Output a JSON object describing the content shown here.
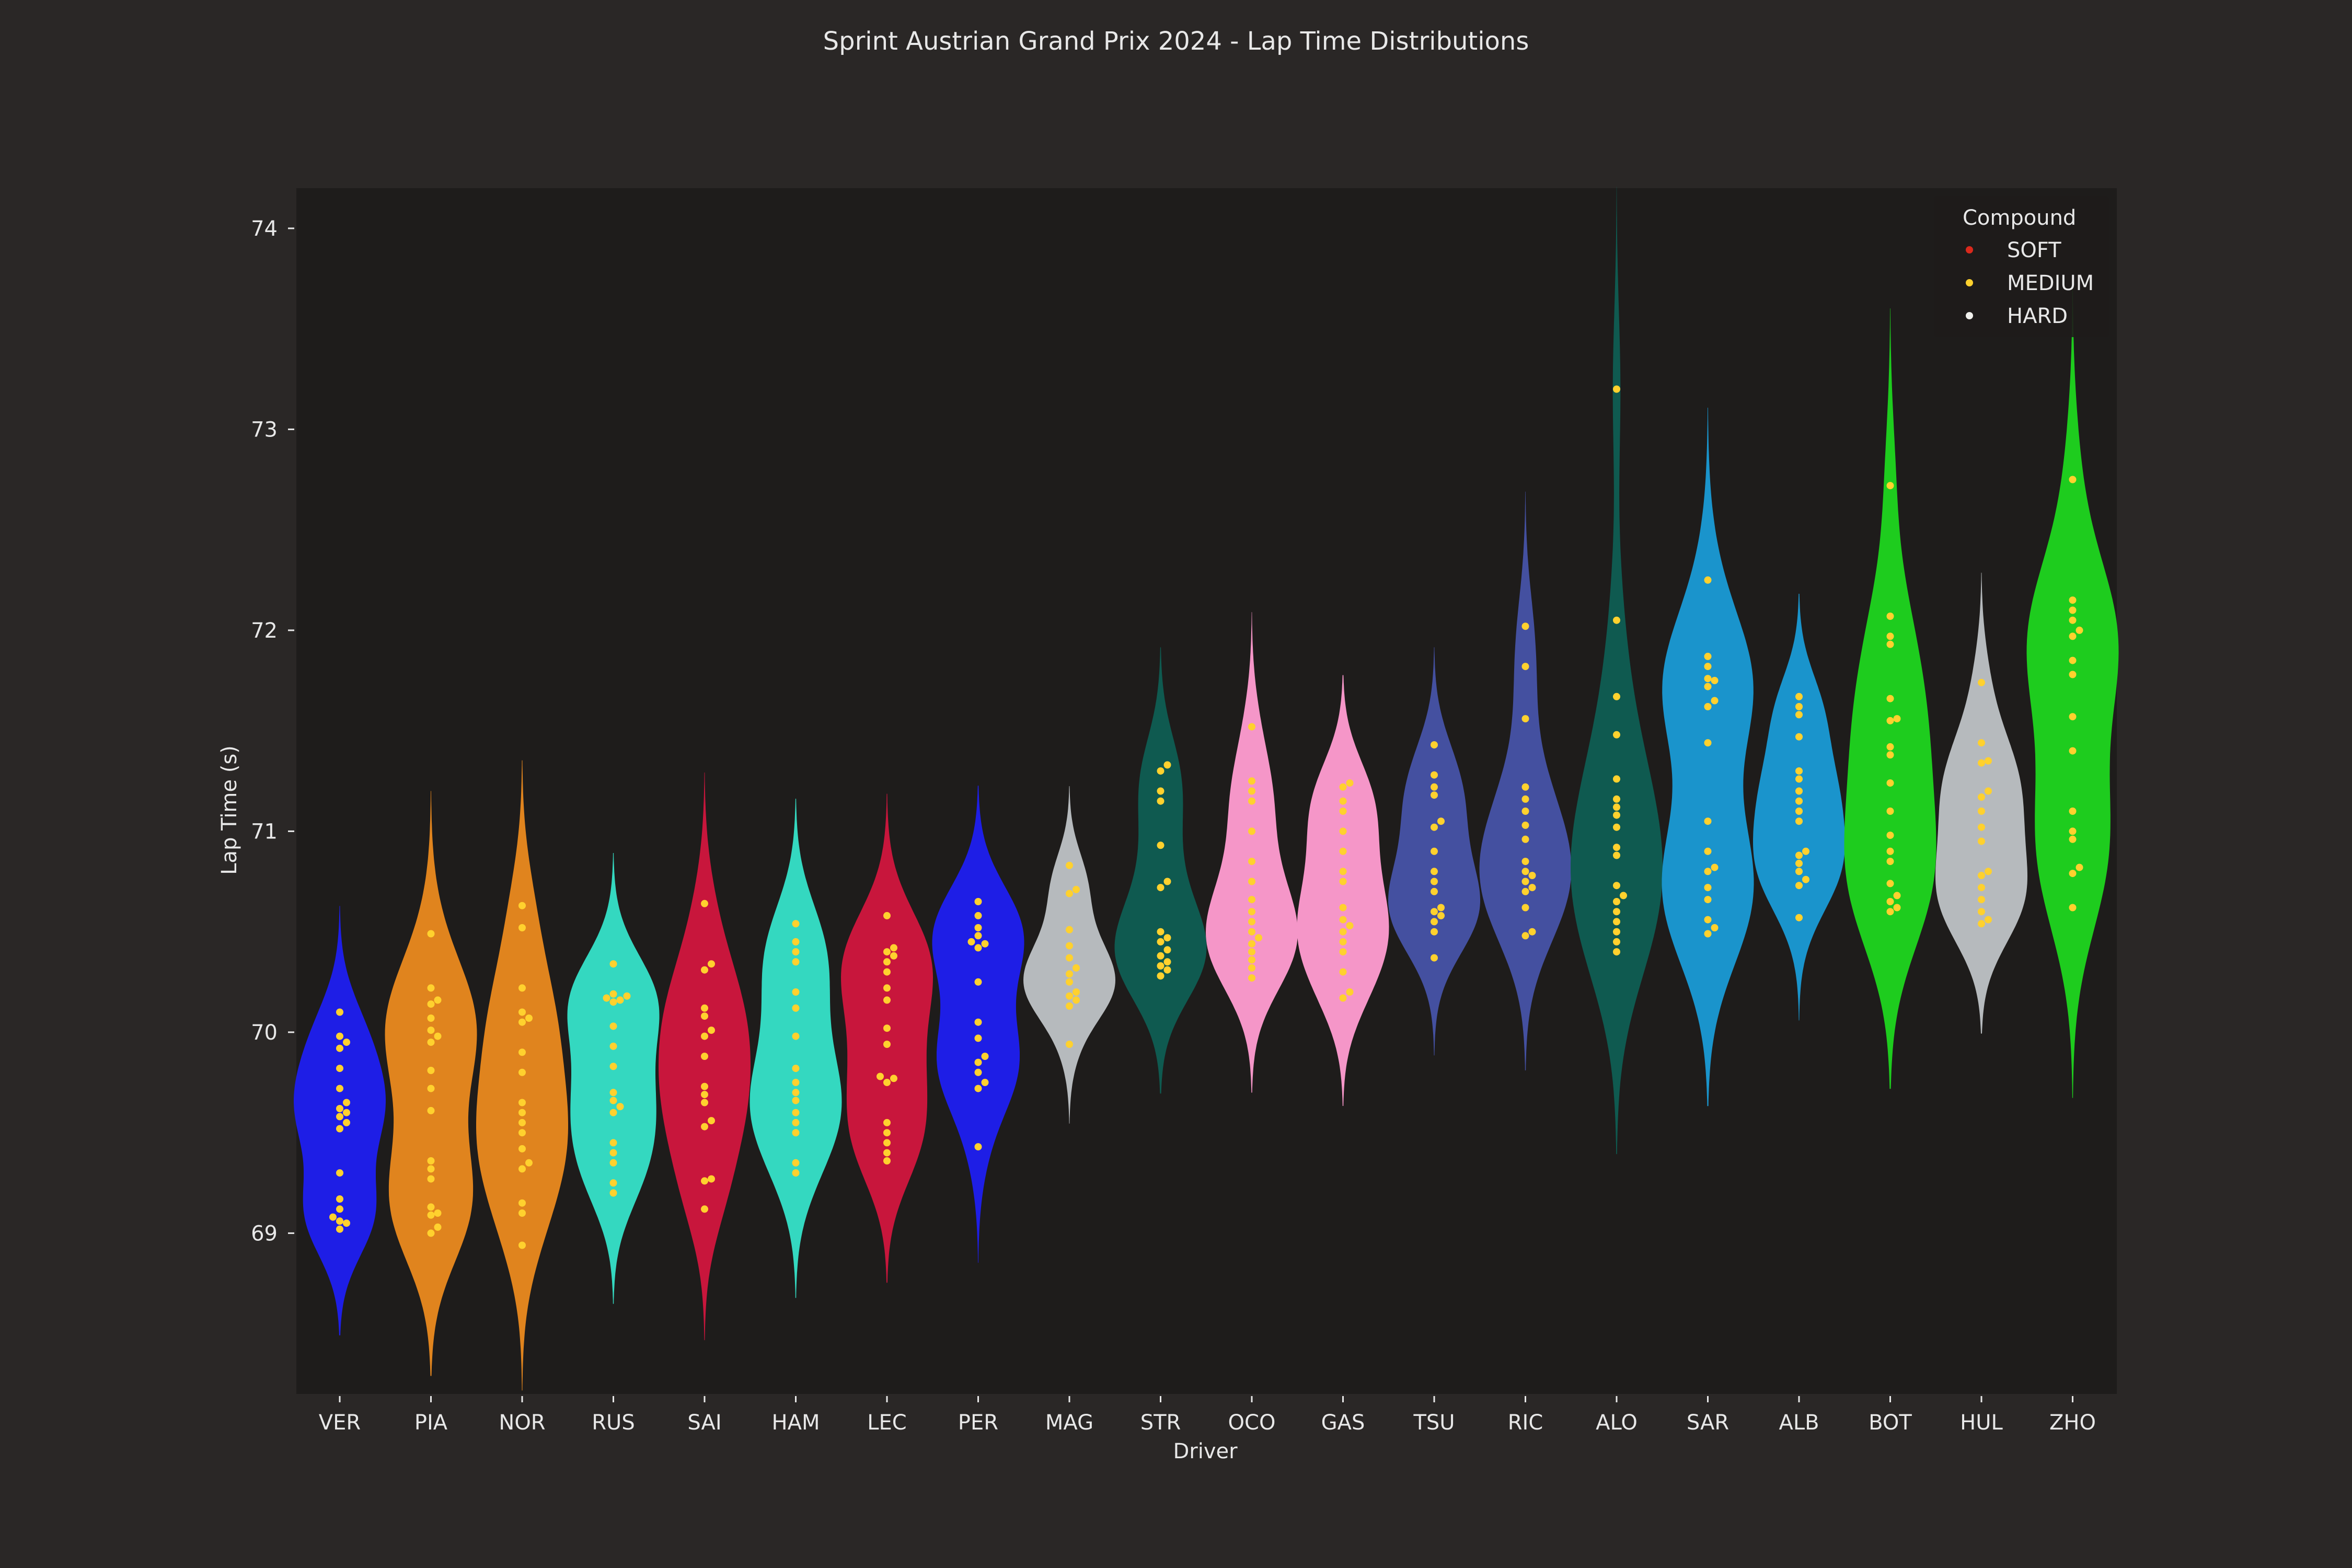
{
  "chart_data": {
    "type": "violin",
    "title": "Sprint Austrian Grand Prix 2024 - Lap Time Distributions",
    "xlabel": "Driver",
    "ylabel": "Lap Time (s)",
    "ylim": [
      68.2,
      74.2
    ],
    "yticks": [
      69,
      70,
      71,
      72,
      73,
      74
    ],
    "grid": false,
    "legend": {
      "title": "Compound",
      "position": "top-right",
      "entries": [
        {
          "label": "SOFT",
          "color": "#da291c"
        },
        {
          "label": "MEDIUM",
          "color": "#ffd12e"
        },
        {
          "label": "HARD",
          "color": "#f0f0ec"
        }
      ]
    },
    "drivers": [
      {
        "name": "VER",
        "color": "#1e1ee6",
        "laps": [
          70.1,
          69.98,
          69.95,
          69.92,
          69.82,
          69.72,
          69.65,
          69.62,
          69.6,
          69.58,
          69.55,
          69.52,
          69.3,
          69.17,
          69.12,
          69.08,
          69.06,
          69.05,
          69.02
        ]
      },
      {
        "name": "PIA",
        "color": "#e0841e",
        "laps": [
          70.49,
          70.22,
          70.16,
          70.14,
          70.07,
          70.01,
          69.98,
          69.95,
          69.81,
          69.72,
          69.61,
          69.36,
          69.32,
          69.27,
          69.13,
          69.1,
          69.09,
          69.03,
          69.0
        ]
      },
      {
        "name": "NOR",
        "color": "#e0841e",
        "laps": [
          70.63,
          70.52,
          70.22,
          70.1,
          70.07,
          70.05,
          69.9,
          69.8,
          69.65,
          69.6,
          69.55,
          69.5,
          69.42,
          69.35,
          69.32,
          69.15,
          69.1,
          68.94
        ]
      },
      {
        "name": "RUS",
        "color": "#34d8c0",
        "laps": [
          70.34,
          70.19,
          70.18,
          70.17,
          70.16,
          70.15,
          70.03,
          69.93,
          69.83,
          69.7,
          69.66,
          69.63,
          69.6,
          69.45,
          69.4,
          69.35,
          69.25,
          69.2
        ]
      },
      {
        "name": "SAI",
        "color": "#c8163c",
        "laps": [
          70.64,
          70.34,
          70.31,
          70.12,
          70.08,
          70.01,
          69.98,
          69.88,
          69.73,
          69.69,
          69.65,
          69.56,
          69.53,
          69.27,
          69.26,
          69.12
        ]
      },
      {
        "name": "HAM",
        "color": "#34d8c0",
        "laps": [
          70.54,
          70.45,
          70.4,
          70.35,
          70.2,
          70.12,
          69.98,
          69.82,
          69.75,
          69.7,
          69.66,
          69.6,
          69.55,
          69.5,
          69.35,
          69.3
        ]
      },
      {
        "name": "LEC",
        "color": "#c8163c",
        "laps": [
          70.58,
          70.42,
          70.4,
          70.38,
          70.35,
          70.3,
          70.22,
          70.16,
          70.02,
          69.94,
          69.78,
          69.77,
          69.75,
          69.55,
          69.5,
          69.45,
          69.4,
          69.36
        ]
      },
      {
        "name": "PER",
        "color": "#1e1ee6",
        "laps": [
          70.65,
          70.58,
          70.52,
          70.48,
          70.45,
          70.44,
          70.42,
          70.25,
          70.05,
          69.97,
          69.88,
          69.85,
          69.8,
          69.75,
          69.72,
          69.43
        ]
      },
      {
        "name": "MAG",
        "color": "#b6babd",
        "laps": [
          70.83,
          70.71,
          70.69,
          70.51,
          70.43,
          70.37,
          70.32,
          70.29,
          70.25,
          70.2,
          70.18,
          70.16,
          70.13,
          69.94
        ]
      },
      {
        "name": "STR",
        "color": "#0f5a50",
        "laps": [
          71.33,
          71.3,
          71.2,
          71.15,
          70.93,
          70.75,
          70.72,
          70.5,
          70.47,
          70.45,
          70.41,
          70.38,
          70.35,
          70.33,
          70.31,
          70.28
        ]
      },
      {
        "name": "OCO",
        "color": "#f596c8",
        "laps": [
          71.52,
          71.25,
          71.2,
          71.15,
          71.0,
          70.85,
          70.75,
          70.66,
          70.6,
          70.55,
          70.5,
          70.47,
          70.44,
          70.4,
          70.36,
          70.32,
          70.27
        ]
      },
      {
        "name": "GAS",
        "color": "#f596c8",
        "laps": [
          71.24,
          71.22,
          71.15,
          71.1,
          71.0,
          70.9,
          70.8,
          70.75,
          70.62,
          70.56,
          70.53,
          70.5,
          70.45,
          70.4,
          70.3,
          70.2,
          70.17
        ]
      },
      {
        "name": "TSU",
        "color": "#4450a0",
        "laps": [
          71.43,
          71.28,
          71.22,
          71.18,
          71.05,
          71.02,
          70.9,
          70.8,
          70.75,
          70.7,
          70.62,
          70.6,
          70.58,
          70.55,
          70.5,
          70.37
        ]
      },
      {
        "name": "RIC",
        "color": "#4450a0",
        "laps": [
          72.02,
          71.82,
          71.56,
          71.22,
          71.16,
          71.1,
          71.03,
          70.96,
          70.85,
          70.8,
          70.78,
          70.75,
          70.72,
          70.7,
          70.62,
          70.5,
          70.48
        ]
      },
      {
        "name": "ALO",
        "color": "#0f5a50",
        "laps": [
          73.2,
          72.05,
          71.67,
          71.48,
          71.26,
          71.16,
          71.12,
          71.08,
          71.02,
          70.92,
          70.88,
          70.73,
          70.68,
          70.65,
          70.6,
          70.55,
          70.5,
          70.45,
          70.4
        ]
      },
      {
        "name": "SAR",
        "color": "#1a94cc",
        "laps": [
          72.25,
          71.87,
          71.82,
          71.76,
          71.75,
          71.72,
          71.65,
          71.62,
          71.44,
          71.05,
          70.9,
          70.82,
          70.8,
          70.72,
          70.66,
          70.56,
          70.52,
          70.49
        ]
      },
      {
        "name": "ALB",
        "color": "#1a94cc",
        "laps": [
          71.67,
          71.62,
          71.58,
          71.47,
          71.3,
          71.26,
          71.2,
          71.15,
          71.1,
          71.05,
          70.9,
          70.88,
          70.84,
          70.8,
          70.76,
          70.73,
          70.57
        ]
      },
      {
        "name": "BOT",
        "color": "#1ecc1e",
        "laps": [
          72.72,
          72.07,
          71.97,
          71.93,
          71.66,
          71.56,
          71.55,
          71.42,
          71.38,
          71.24,
          71.1,
          70.98,
          70.9,
          70.85,
          70.74,
          70.68,
          70.65,
          70.62,
          70.6
        ]
      },
      {
        "name": "HUL",
        "color": "#b6babd",
        "laps": [
          71.74,
          71.44,
          71.35,
          71.34,
          71.2,
          71.17,
          71.1,
          71.02,
          70.95,
          70.8,
          70.78,
          70.72,
          70.66,
          70.6,
          70.56,
          70.54
        ]
      },
      {
        "name": "ZHO",
        "color": "#1ecc1e",
        "laps": [
          72.75,
          72.15,
          72.1,
          72.05,
          72.0,
          71.97,
          71.85,
          71.78,
          71.57,
          71.4,
          71.1,
          71.0,
          70.96,
          70.82,
          70.79,
          70.62
        ]
      }
    ]
  }
}
